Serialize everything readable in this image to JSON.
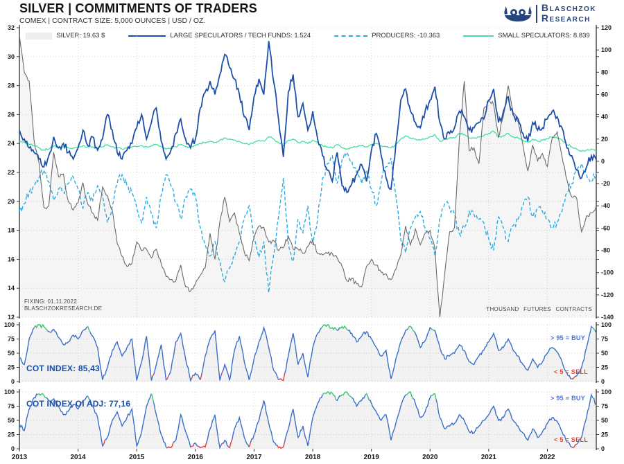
{
  "header": {
    "title": "SILVER | COMMITMENTS OF TRADERS",
    "subtitle": "COMEX | CONTRACT SIZE: 5,000 OUNCES | USD / OZ.",
    "logo": {
      "line1": "BLASCHZOK",
      "line2": "RESEARCH"
    }
  },
  "legend": [
    {
      "label": "SILVER: 19.63 $",
      "swatch": "area",
      "color": "#b9b9b9"
    },
    {
      "label": "LARGE SPECULATORS / TECH FUNDS: 1.524",
      "swatch": "line",
      "color": "#1d4fa8"
    },
    {
      "label": "PRODUCERS: -10.363",
      "swatch": "dashed-line",
      "color": "#29abe2"
    },
    {
      "label": "SMALL SPECULATORS: 8.839",
      "swatch": "line",
      "color": "#3fe0a0"
    }
  ],
  "notes": {
    "fixing": "FIXING: 01.11.2022",
    "site": "BLASCHZOKRESEARCH.DE",
    "units": "THOUSAND FUTURES CONTRACTS"
  },
  "panels": {
    "cot1_label": "COT INDEX: 85,43",
    "cot2_label": "COT INDEX OI ADJ: 77,16",
    "buy_note": "> 95 = BUY",
    "sell_note": "< 5 = SELL"
  },
  "colors": {
    "silver": "#6a6a6a",
    "silver_fill": "rgba(120,120,120,0.07)",
    "large_specs": "#1d4fa8",
    "producers": "#29abe2",
    "small_specs": "#3fe0a0",
    "cot_line": "#3a6ec8",
    "cot_buy": "#3bc472",
    "cot_sell": "#e53935",
    "cot_fill": "rgba(150,150,150,0.12)",
    "grid": "#d6d6d6",
    "spine": "#3c3c3c"
  },
  "chart_data": [
    {
      "id": "main",
      "type": "line",
      "title": "Silver price vs COT net positions",
      "x_start": 2013.0,
      "x_step_years": 0.08333,
      "x_ticks": [
        2013,
        2014,
        2015,
        2016,
        2017,
        2018,
        2019,
        2020,
        2021,
        2022
      ],
      "left_axis": {
        "label": "USD / OZ.",
        "range": [
          12,
          32
        ],
        "ticks": [
          32,
          30,
          28,
          26,
          24,
          22,
          20,
          18,
          16,
          14,
          12
        ]
      },
      "right_axis": {
        "label": "THOUSAND FUTURES CONTRACTS",
        "range": [
          -140,
          120
        ],
        "ticks": [
          120,
          100,
          80,
          60,
          40,
          20,
          0,
          -20,
          -40,
          -60,
          -80,
          -100,
          -120,
          -140
        ]
      },
      "series": [
        {
          "name": "SILVER",
          "axis": "left",
          "style": "solid",
          "fill": true,
          "last_value": "19.63 $",
          "values": [
            31.5,
            28.9,
            28.3,
            24.2,
            22.7,
            19.6,
            19.7,
            23.4,
            21.7,
            21.9,
            20.0,
            19.4,
            19.9,
            21.3,
            19.8,
            19.2,
            18.7,
            21.0,
            20.4,
            19.4,
            17.1,
            16.2,
            15.5,
            15.7,
            17.2,
            16.6,
            16.7,
            16.1,
            16.7,
            15.7,
            14.8,
            14.6,
            14.5,
            15.6,
            14.1,
            13.8,
            14.3,
            14.9,
            15.4,
            17.8,
            16.0,
            18.6,
            20.3,
            18.6,
            19.2,
            17.8,
            16.5,
            15.9,
            17.5,
            18.3,
            18.2,
            17.2,
            17.3,
            16.6,
            16.8,
            17.6,
            16.7,
            16.7,
            16.4,
            16.9,
            17.3,
            16.4,
            16.3,
            16.4,
            16.4,
            16.1,
            15.5,
            14.5,
            14.7,
            14.3,
            14.1,
            15.5,
            16.0,
            15.6,
            15.1,
            15.0,
            14.6,
            15.3,
            16.3,
            18.3,
            17.0,
            18.1,
            17.0,
            17.8,
            18.0,
            16.7,
            12.0,
            15.0,
            17.9,
            18.2,
            24.4,
            28.3,
            23.5,
            23.7,
            22.6,
            26.4,
            27.0,
            26.7,
            24.4,
            25.9,
            28.0,
            26.1,
            25.5,
            23.9,
            22.1,
            23.9,
            22.8,
            23.3,
            22.4,
            24.4,
            24.8,
            23.1,
            21.5,
            20.3,
            20.2,
            17.9,
            19.0,
            19.2,
            19.63
          ]
        },
        {
          "name": "LARGE SPECULATORS / TECH FUNDS",
          "axis": "right",
          "style": "solid",
          "last_value": "1.524",
          "values": [
            28,
            20,
            12,
            8,
            2,
            -5,
            5,
            22,
            12,
            16,
            8,
            2,
            12,
            28,
            14,
            22,
            10,
            20,
            42,
            28,
            8,
            2,
            10,
            16,
            30,
            42,
            20,
            35,
            48,
            18,
            2,
            10,
            25,
            38,
            20,
            12,
            20,
            48,
            62,
            72,
            60,
            78,
            96,
            84,
            74,
            60,
            40,
            28,
            58,
            74,
            60,
            108,
            72,
            38,
            4,
            62,
            78,
            40,
            52,
            28,
            45,
            20,
            5,
            -8,
            -18,
            8,
            -22,
            -28,
            -20,
            -12,
            -3,
            -18,
            10,
            25,
            5,
            -15,
            -25,
            15,
            55,
            65,
            45,
            35,
            30,
            45,
            55,
            67,
            35,
            20,
            25,
            30,
            45,
            40,
            28,
            30,
            35,
            38,
            55,
            65,
            35,
            45,
            58,
            42,
            38,
            25,
            18,
            35,
            28,
            30,
            38,
            45,
            40,
            30,
            12,
            5,
            -8,
            -15,
            -5,
            5,
            1.524
          ]
        },
        {
          "name": "PRODUCERS",
          "axis": "right",
          "style": "dashed",
          "last_value": "-10.363",
          "values": [
            -45,
            -38,
            -28,
            -22,
            -15,
            -8,
            -18,
            -35,
            -25,
            -28,
            -20,
            -14,
            -25,
            -42,
            -28,
            -35,
            -22,
            -32,
            -55,
            -40,
            -20,
            -12,
            -22,
            -28,
            -42,
            -55,
            -32,
            -48,
            -60,
            -30,
            -12,
            -22,
            -38,
            -52,
            -32,
            -25,
            -32,
            -60,
            -75,
            -85,
            -72,
            -90,
            -108,
            -96,
            -86,
            -72,
            -52,
            -40,
            -70,
            -86,
            -72,
            -118,
            -84,
            -50,
            -15,
            -74,
            -90,
            -52,
            -64,
            -40,
            -75,
            -52,
            -15,
            -2,
            5,
            -20,
            2,
            8,
            0,
            -10,
            -20,
            -8,
            -25,
            -40,
            -18,
            -5,
            3,
            -30,
            -70,
            -82,
            -60,
            -50,
            -45,
            -60,
            -70,
            -85,
            -50,
            -38,
            -42,
            -48,
            -65,
            -60,
            -45,
            -48,
            -52,
            -55,
            -70,
            -80,
            -50,
            -60,
            -72,
            -58,
            -52,
            -40,
            -32,
            -50,
            -42,
            -45,
            -52,
            -60,
            -55,
            -45,
            -28,
            -20,
            -8,
            -2,
            -12,
            -18,
            -10.363
          ]
        },
        {
          "name": "SMALL SPECULATORS",
          "axis": "right",
          "style": "solid",
          "last_value": "8.839",
          "values": [
            18,
            17,
            15,
            14,
            12,
            10,
            11,
            14,
            13,
            13,
            12,
            12,
            13,
            14,
            13,
            13,
            12,
            13,
            15,
            13,
            12,
            11,
            12,
            13,
            13,
            14,
            13,
            14,
            15,
            13,
            11,
            12,
            13,
            15,
            13,
            13,
            14,
            16,
            17,
            18,
            17,
            19,
            21,
            20,
            19,
            18,
            16,
            15,
            17,
            19,
            18,
            22,
            20,
            17,
            14,
            19,
            20,
            17,
            18,
            16,
            19,
            17,
            14,
            13,
            12,
            15,
            12,
            11,
            12,
            13,
            14,
            13,
            15,
            16,
            14,
            13,
            12,
            15,
            20,
            23,
            21,
            20,
            19,
            20,
            22,
            24,
            18,
            20,
            21,
            21,
            25,
            24,
            21,
            21,
            22,
            23,
            25,
            27,
            22,
            23,
            25,
            22,
            21,
            19,
            17,
            20,
            18,
            19,
            20,
            22,
            21,
            19,
            15,
            13,
            11,
            9,
            10,
            11,
            8.839
          ]
        }
      ]
    },
    {
      "id": "cot_index",
      "type": "line",
      "title": "COT INDEX",
      "last_value": "85,43",
      "range": [
        0,
        100
      ],
      "ticks": [
        0,
        25,
        50,
        75,
        100
      ],
      "thresholds": {
        "buy": 95,
        "sell": 5
      },
      "values": [
        42,
        30,
        75,
        95,
        100,
        97,
        88,
        92,
        78,
        65,
        70,
        82,
        75,
        90,
        97,
        80,
        60,
        3,
        25,
        55,
        70,
        45,
        60,
        75,
        2,
        35,
        80,
        2,
        30,
        65,
        3,
        20,
        70,
        85,
        40,
        2,
        15,
        3,
        45,
        75,
        90,
        2,
        30,
        2,
        55,
        80,
        35,
        3,
        40,
        70,
        95,
        60,
        20,
        3,
        2,
        45,
        85,
        30,
        50,
        8,
        60,
        85,
        97,
        100,
        95,
        90,
        97,
        92,
        85,
        70,
        80,
        88,
        75,
        60,
        45,
        55,
        5,
        40,
        70,
        90,
        97,
        85,
        60,
        72,
        95,
        90,
        60,
        40,
        45,
        50,
        65,
        55,
        35,
        30,
        45,
        55,
        70,
        85,
        55,
        60,
        75,
        55,
        45,
        30,
        20,
        40,
        25,
        35,
        50,
        60,
        52,
        35,
        15,
        5,
        10,
        25,
        60,
        97,
        85.43
      ]
    },
    {
      "id": "cot_index_oi_adj",
      "type": "line",
      "title": "COT INDEX OI ADJ",
      "last_value": "77,16",
      "range": [
        0,
        100
      ],
      "ticks": [
        0,
        25,
        50,
        75,
        100
      ],
      "thresholds": {
        "buy": 95,
        "sell": 5
      },
      "values": [
        44,
        32,
        70,
        90,
        97,
        94,
        85,
        88,
        75,
        60,
        66,
        78,
        70,
        85,
        93,
        75,
        55,
        5,
        20,
        50,
        65,
        40,
        55,
        70,
        5,
        30,
        75,
        97,
        60,
        25,
        3,
        2,
        15,
        60,
        30,
        3,
        10,
        2,
        3,
        35,
        60,
        2,
        15,
        2,
        35,
        55,
        20,
        3,
        25,
        50,
        85,
        45,
        12,
        2,
        3,
        35,
        70,
        20,
        40,
        5,
        55,
        80,
        95,
        100,
        98,
        85,
        95,
        100,
        90,
        75,
        85,
        97,
        80,
        65,
        50,
        60,
        15,
        45,
        75,
        95,
        100,
        80,
        55,
        65,
        90,
        97,
        55,
        35,
        40,
        45,
        60,
        50,
        30,
        28,
        40,
        50,
        60,
        75,
        50,
        55,
        70,
        50,
        40,
        28,
        15,
        35,
        20,
        30,
        45,
        55,
        48,
        30,
        12,
        3,
        8,
        20,
        55,
        95,
        77.16
      ]
    }
  ]
}
